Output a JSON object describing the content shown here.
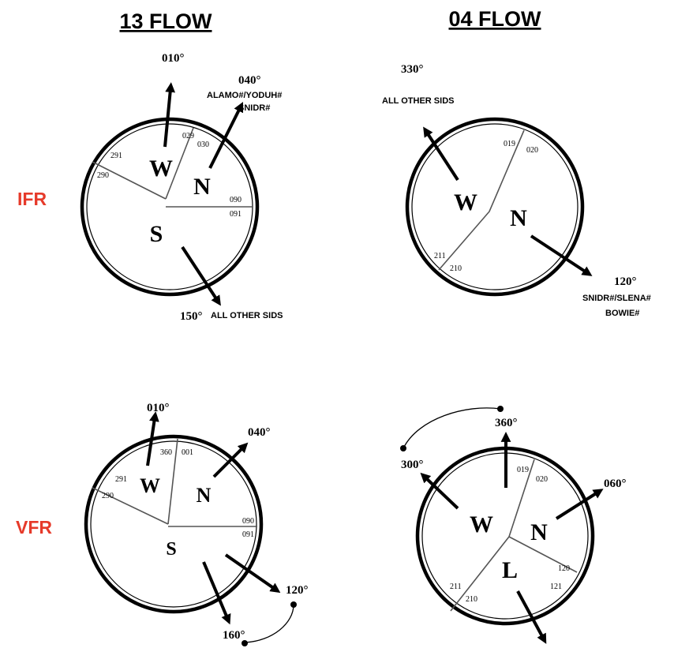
{
  "columns": {
    "left_title": "13 FLOW",
    "right_title": "04 FLOW"
  },
  "rows": {
    "ifr_label": "IFR",
    "vfr_label": "VFR"
  },
  "colors": {
    "row_label": "#e63a2a",
    "ink": "#000000"
  },
  "ifr_13": {
    "sectors": [
      "W",
      "N",
      "S"
    ],
    "headings": {
      "north": "010°",
      "east": "040°",
      "south": "150°"
    },
    "sids": {
      "east_line1": "ALAMO#/YODUH#",
      "east_line2": "SNIDR#",
      "south": "ALL OTHER SIDS"
    },
    "ticks": [
      "029",
      "030",
      "291",
      "290",
      "090",
      "091"
    ]
  },
  "ifr_04": {
    "sectors": [
      "W",
      "N"
    ],
    "headings": {
      "west": "330°",
      "east": "120°"
    },
    "sids": {
      "west": "ALL OTHER SIDS",
      "east_line1": "SNIDR#/SLENA#",
      "east_line2": "BOWIE#"
    },
    "ticks": [
      "019",
      "020",
      "211",
      "210"
    ]
  },
  "vfr_13": {
    "sectors": [
      "W",
      "N",
      "S"
    ],
    "headings": {
      "north": "010°",
      "east": "040°",
      "southeast": "120°",
      "south": "160°"
    },
    "ticks": [
      "360",
      "001",
      "291",
      "290",
      "090",
      "091"
    ]
  },
  "vfr_04": {
    "sectors": [
      "W",
      "N",
      "L"
    ],
    "headings": {
      "north": "360°",
      "west": "300°",
      "east": "060°"
    },
    "ticks": [
      "019",
      "020",
      "120",
      "121",
      "211",
      "210"
    ]
  }
}
